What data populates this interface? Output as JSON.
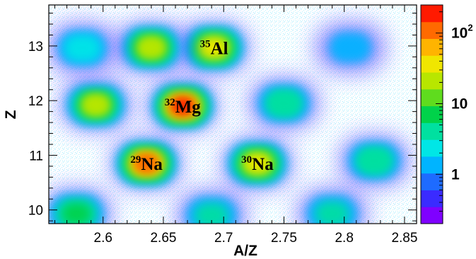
{
  "chart_data": {
    "type": "heatmap",
    "title": "",
    "xlabel": "A/Z",
    "ylabel": "Z",
    "xlim": [
      2.555,
      2.86
    ],
    "ylim": [
      9.75,
      13.75
    ],
    "x_ticks": [
      "2.6",
      "2.65",
      "2.7",
      "2.75",
      "2.8",
      "2.85"
    ],
    "x_tick_values": [
      2.6,
      2.65,
      2.7,
      2.75,
      2.8,
      2.85
    ],
    "y_ticks": [
      "10",
      "11",
      "12",
      "13"
    ],
    "y_tick_values": [
      10,
      11,
      12,
      13
    ],
    "grid": false,
    "colorbar": {
      "scale": "log",
      "range": [
        0.2,
        250
      ],
      "labels": [
        {
          "base": "1",
          "exp": "",
          "value": 1
        },
        {
          "base": "10",
          "exp": "",
          "value": 10
        },
        {
          "base": "10",
          "exp": "2",
          "value": 100
        }
      ],
      "colors": [
        "#7f00ff",
        "#3a2bff",
        "#1e6bff",
        "#00b4ff",
        "#00e6e6",
        "#00e0a0",
        "#00d24a",
        "#5fdc1e",
        "#b8e600",
        "#f0e600",
        "#ffb400",
        "#ff6a00",
        "#ff1a00"
      ]
    },
    "clusters": [
      {
        "label": "Na",
        "mass": "29",
        "a_over_z": 2.636,
        "z": 10.85,
        "peak_counts": 140
      },
      {
        "label": "Mg",
        "mass": "32",
        "a_over_z": 2.666,
        "z": 11.9,
        "peak_counts": 200
      },
      {
        "label": "Al",
        "mass": "35",
        "a_over_z": 2.692,
        "z": 12.97,
        "peak_counts": 50
      },
      {
        "label": "Na",
        "mass": "30",
        "a_over_z": 2.728,
        "z": 10.85,
        "peak_counts": 45
      },
      {
        "label": "",
        "mass": "",
        "a_over_z": 2.594,
        "z": 11.92,
        "peak_counts": 25
      },
      {
        "label": "",
        "mass": "",
        "a_over_z": 2.64,
        "z": 12.97,
        "peak_counts": 30
      },
      {
        "label": "",
        "mass": "",
        "a_over_z": 2.75,
        "z": 11.95,
        "peak_counts": 4
      },
      {
        "label": "",
        "mass": "",
        "a_over_z": 2.825,
        "z": 10.9,
        "peak_counts": 4
      },
      {
        "label": "",
        "mass": "",
        "a_over_z": 2.583,
        "z": 12.96,
        "peak_counts": 2
      },
      {
        "label": "",
        "mass": "",
        "a_over_z": 2.578,
        "z": 9.93,
        "peak_counts": 8
      },
      {
        "label": "",
        "mass": "",
        "a_over_z": 2.69,
        "z": 9.9,
        "peak_counts": 3
      },
      {
        "label": "",
        "mass": "",
        "a_over_z": 2.79,
        "z": 9.93,
        "peak_counts": 3
      },
      {
        "label": "",
        "mass": "",
        "a_over_z": 2.805,
        "z": 12.97,
        "peak_counts": 1
      }
    ]
  }
}
